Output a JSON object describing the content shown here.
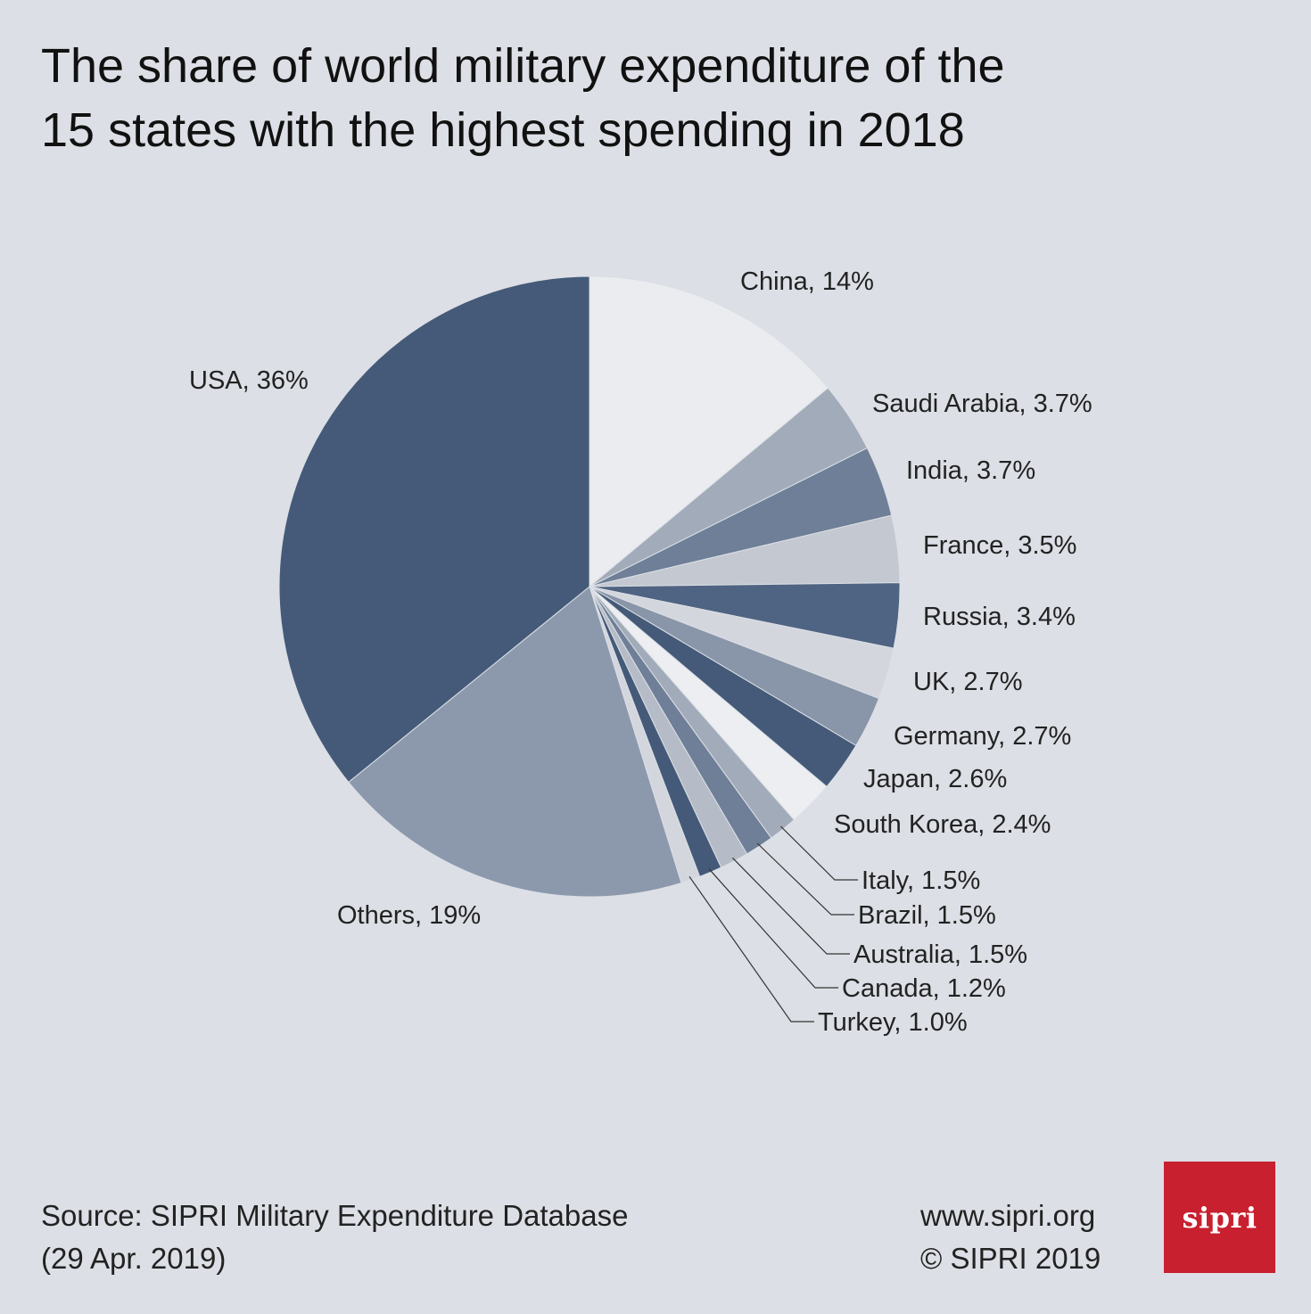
{
  "header": {
    "title_line1": "The share of world military expenditure of the",
    "title_line2": "15 states with the highest spending in 2018"
  },
  "chart_data": {
    "type": "pie",
    "title": "The share of world military expenditure of the 15 states with the highest spending in 2018",
    "unit": "%",
    "slices": [
      {
        "name": "China",
        "value": 14,
        "label": "China, 14%",
        "color": "#ebecf0"
      },
      {
        "name": "Saudi Arabia",
        "value": 3.7,
        "label": "Saudi Arabia, 3.7%",
        "color": "#a2abb9"
      },
      {
        "name": "India",
        "value": 3.7,
        "label": "India, 3.7%",
        "color": "#6e7f97"
      },
      {
        "name": "France",
        "value": 3.5,
        "label": "France, 3.5%",
        "color": "#c3c8d1"
      },
      {
        "name": "Russia",
        "value": 3.4,
        "label": "Russia, 3.4%",
        "color": "#4f6482"
      },
      {
        "name": "UK",
        "value": 2.7,
        "label": "UK, 2.7%",
        "color": "#d3d6dd"
      },
      {
        "name": "Germany",
        "value": 2.7,
        "label": "Germany, 2.7%",
        "color": "#8995a8"
      },
      {
        "name": "Japan",
        "value": 2.6,
        "label": "Japan, 2.6%",
        "color": "#445a78"
      },
      {
        "name": "South Korea",
        "value": 2.4,
        "label": "South Korea, 2.4%",
        "color": "#eceef1"
      },
      {
        "name": "Italy",
        "value": 1.5,
        "label": "Italy, 1.5%",
        "color": "#a2abb9"
      },
      {
        "name": "Brazil",
        "value": 1.5,
        "label": "Brazil, 1.5%",
        "color": "#6e7f97"
      },
      {
        "name": "Australia",
        "value": 1.5,
        "label": "Australia, 1.5%",
        "color": "#b5bcc7"
      },
      {
        "name": "Canada",
        "value": 1.2,
        "label": "Canada, 1.2%",
        "color": "#445a78"
      },
      {
        "name": "Turkey",
        "value": 1.0,
        "label": "Turkey, 1.0%",
        "color": "#d3d6dd"
      },
      {
        "name": "Others",
        "value": 19,
        "label": "Others, 19%",
        "color": "#8c99ad"
      },
      {
        "name": "USA",
        "value": 36,
        "label": "USA, 36%",
        "color": "#445a78"
      }
    ]
  },
  "footer": {
    "source_line1": "Source: SIPRI Military Expenditure Database",
    "source_line2": "(29 Apr. 2019)",
    "website": "www.sipri.org",
    "copyright": "© SIPRI 2019",
    "logo_text": "sipri"
  }
}
